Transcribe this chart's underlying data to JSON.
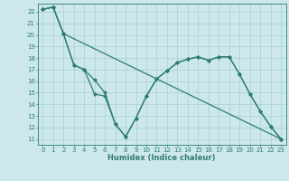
{
  "xlabel": "Humidex (Indice chaleur)",
  "bg_color": "#cce8ea",
  "grid_color": "#aacfd2",
  "line_color": "#2e7d72",
  "xlim": [
    -0.5,
    23.5
  ],
  "ylim": [
    10.5,
    22.7
  ],
  "yticks": [
    11,
    12,
    13,
    14,
    15,
    16,
    17,
    18,
    19,
    20,
    21,
    22
  ],
  "xticks": [
    0,
    1,
    2,
    3,
    4,
    5,
    6,
    7,
    8,
    9,
    10,
    11,
    12,
    13,
    14,
    15,
    16,
    17,
    18,
    19,
    20,
    21,
    22,
    23
  ],
  "line1_x": [
    0,
    1,
    2,
    3,
    4,
    5,
    6,
    7,
    8,
    9,
    10,
    11,
    12,
    13,
    14,
    15,
    16,
    17,
    18,
    19,
    20,
    21,
    22,
    23
  ],
  "line1_y": [
    22.2,
    22.4,
    20.1,
    17.4,
    17.0,
    16.1,
    15.0,
    12.3,
    11.2,
    12.8,
    14.7,
    16.2,
    16.9,
    17.6,
    17.9,
    18.1,
    17.8,
    18.1,
    18.1,
    16.6,
    14.9,
    13.4,
    12.1,
    11.0
  ],
  "line2_x": [
    0,
    1,
    2,
    3,
    4,
    5,
    6,
    7,
    8,
    9,
    10,
    11,
    12,
    13,
    14,
    15,
    16,
    17,
    18,
    19,
    20,
    21,
    22,
    23
  ],
  "line2_y": [
    22.2,
    22.4,
    20.1,
    17.4,
    17.0,
    14.9,
    14.7,
    12.3,
    11.2,
    12.8,
    14.7,
    16.2,
    16.9,
    17.6,
    17.9,
    18.1,
    17.8,
    18.1,
    18.1,
    16.6,
    14.9,
    13.4,
    12.1,
    11.0
  ],
  "line3_x": [
    0,
    1,
    2,
    23
  ],
  "line3_y": [
    22.2,
    22.4,
    20.1,
    11.0
  ]
}
